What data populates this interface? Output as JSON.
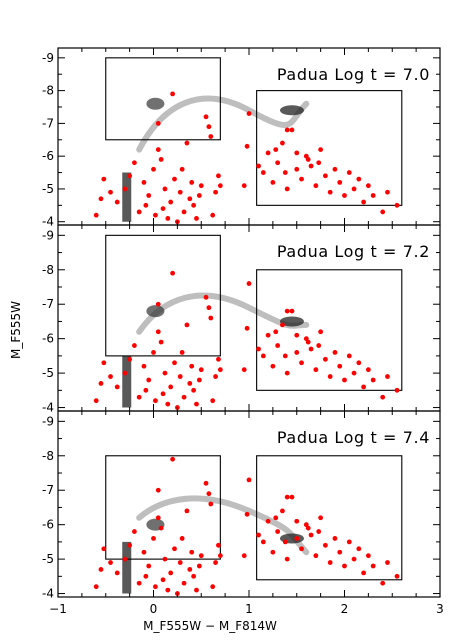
{
  "chart_data": {
    "type": "scatter",
    "xlabel": "M_F555W − M_F814W",
    "ylabel": "M_F555W",
    "x_range": [
      -1,
      3
    ],
    "x_ticks": [
      "−1",
      "0",
      "1",
      "2",
      "3"
    ],
    "panels": [
      {
        "title": "Padua Log t = 7.0",
        "y_range": [
          -3.9,
          -9.3
        ],
        "y_ticks": [
          "-9",
          "-8",
          "-7",
          "-6",
          "-5",
          "-4"
        ],
        "boxes": [
          {
            "x0": -0.5,
            "x1": 0.7,
            "y0": -6.5,
            "y1": -9.0
          },
          {
            "x0": 1.08,
            "x1": 2.6,
            "y0": -4.5,
            "y1": -8.0
          }
        ],
        "stars": [
          [
            -0.55,
            -4.7
          ],
          [
            -0.45,
            -4.9
          ],
          [
            -0.38,
            -4.6
          ],
          [
            -0.3,
            -5.0
          ],
          [
            -0.25,
            -5.4
          ],
          [
            -0.2,
            -5.8
          ],
          [
            -0.15,
            -4.3
          ],
          [
            -0.1,
            -5.2
          ],
          [
            -0.05,
            -4.8
          ],
          [
            0.0,
            -5.6
          ],
          [
            0.02,
            -4.2
          ],
          [
            0.05,
            -6.2
          ],
          [
            0.08,
            -5.9
          ],
          [
            0.1,
            -4.4
          ],
          [
            0.12,
            -5.0
          ],
          [
            0.15,
            -4.1
          ],
          [
            0.18,
            -4.6
          ],
          [
            0.22,
            -5.3
          ],
          [
            0.25,
            -4.0
          ],
          [
            0.28,
            -4.9
          ],
          [
            0.3,
            -5.6
          ],
          [
            0.32,
            -4.3
          ],
          [
            0.35,
            -6.4
          ],
          [
            0.38,
            -4.7
          ],
          [
            0.4,
            -5.2
          ],
          [
            0.42,
            -4.5
          ],
          [
            0.45,
            -4.1
          ],
          [
            0.48,
            -4.8
          ],
          [
            0.5,
            -5.1
          ],
          [
            0.55,
            -7.2
          ],
          [
            0.58,
            -6.9
          ],
          [
            0.6,
            -6.6
          ],
          [
            0.62,
            -4.2
          ],
          [
            0.65,
            -4.9
          ],
          [
            0.68,
            -5.4
          ],
          [
            0.2,
            -7.9
          ],
          [
            0.05,
            -7.0
          ],
          [
            0.7,
            -5.1
          ],
          [
            -0.08,
            -4.5
          ],
          [
            -0.6,
            -4.2
          ],
          [
            -0.52,
            -5.3
          ],
          [
            0.95,
            -5.1
          ],
          [
            0.98,
            -6.3
          ],
          [
            1.0,
            -7.3
          ],
          [
            1.1,
            -5.7
          ],
          [
            1.15,
            -5.5
          ],
          [
            1.2,
            -6.1
          ],
          [
            1.25,
            -5.2
          ],
          [
            1.3,
            -5.8
          ],
          [
            1.35,
            -6.4
          ],
          [
            1.4,
            -5.0
          ],
          [
            1.45,
            -6.8
          ],
          [
            1.5,
            -5.6
          ],
          [
            1.55,
            -5.3
          ],
          [
            1.6,
            -6.0
          ],
          [
            1.65,
            -5.7
          ],
          [
            1.7,
            -5.1
          ],
          [
            1.75,
            -6.2
          ],
          [
            1.8,
            -5.4
          ],
          [
            1.85,
            -4.9
          ],
          [
            1.9,
            -5.6
          ],
          [
            1.95,
            -5.2
          ],
          [
            2.0,
            -4.8
          ],
          [
            2.05,
            -5.5
          ],
          [
            2.1,
            -5.0
          ],
          [
            2.15,
            -5.3
          ],
          [
            2.2,
            -4.6
          ],
          [
            2.25,
            -5.1
          ],
          [
            2.3,
            -4.8
          ],
          [
            2.4,
            -4.3
          ],
          [
            2.45,
            -4.9
          ],
          [
            2.55,
            -4.5
          ],
          [
            1.4,
            -6.8
          ],
          [
            1.5,
            -6.1
          ],
          [
            1.62,
            -5.9
          ],
          [
            1.73,
            -5.8
          ],
          [
            1.28,
            -6.2
          ],
          [
            1.38,
            -5.5
          ]
        ]
      },
      {
        "title": "Padua Log t = 7.2",
        "y_range": [
          -3.9,
          -9.3
        ],
        "y_ticks": [
          "-9",
          "-8",
          "-7",
          "-6",
          "-5",
          "-4"
        ],
        "boxes": [
          {
            "x0": -0.5,
            "x1": 0.7,
            "y0": -5.5,
            "y1": -9.0
          },
          {
            "x0": 1.08,
            "x1": 2.6,
            "y0": -4.5,
            "y1": -8.0
          }
        ],
        "stars": [
          [
            -0.55,
            -4.7
          ],
          [
            -0.45,
            -4.9
          ],
          [
            -0.38,
            -4.6
          ],
          [
            -0.3,
            -5.0
          ],
          [
            -0.25,
            -5.4
          ],
          [
            -0.2,
            -5.8
          ],
          [
            -0.15,
            -4.3
          ],
          [
            -0.1,
            -5.2
          ],
          [
            -0.05,
            -4.8
          ],
          [
            0.0,
            -5.6
          ],
          [
            0.02,
            -4.2
          ],
          [
            0.05,
            -6.2
          ],
          [
            0.08,
            -5.9
          ],
          [
            0.1,
            -4.4
          ],
          [
            0.12,
            -5.0
          ],
          [
            0.15,
            -4.1
          ],
          [
            0.18,
            -4.6
          ],
          [
            0.22,
            -5.3
          ],
          [
            0.25,
            -4.0
          ],
          [
            0.28,
            -4.9
          ],
          [
            0.3,
            -5.6
          ],
          [
            0.32,
            -4.3
          ],
          [
            0.35,
            -6.4
          ],
          [
            0.38,
            -4.7
          ],
          [
            0.4,
            -5.2
          ],
          [
            0.42,
            -4.5
          ],
          [
            0.45,
            -4.1
          ],
          [
            0.48,
            -4.8
          ],
          [
            0.5,
            -5.1
          ],
          [
            0.55,
            -7.2
          ],
          [
            0.58,
            -6.9
          ],
          [
            0.6,
            -6.6
          ],
          [
            0.62,
            -4.2
          ],
          [
            0.65,
            -4.9
          ],
          [
            0.68,
            -5.4
          ],
          [
            0.2,
            -7.9
          ],
          [
            0.05,
            -7.0
          ],
          [
            0.7,
            -5.1
          ],
          [
            -0.08,
            -4.5
          ],
          [
            -0.6,
            -4.2
          ],
          [
            -0.52,
            -5.3
          ],
          [
            0.95,
            -5.1
          ],
          [
            0.98,
            -6.3
          ],
          [
            1.0,
            -7.6
          ],
          [
            1.1,
            -5.7
          ],
          [
            1.15,
            -5.5
          ],
          [
            1.2,
            -6.1
          ],
          [
            1.25,
            -5.2
          ],
          [
            1.3,
            -5.8
          ],
          [
            1.35,
            -6.4
          ],
          [
            1.4,
            -5.0
          ],
          [
            1.45,
            -6.8
          ],
          [
            1.5,
            -5.6
          ],
          [
            1.55,
            -5.3
          ],
          [
            1.6,
            -6.0
          ],
          [
            1.65,
            -5.7
          ],
          [
            1.7,
            -5.1
          ],
          [
            1.75,
            -6.2
          ],
          [
            1.8,
            -5.4
          ],
          [
            1.85,
            -4.9
          ],
          [
            1.9,
            -5.6
          ],
          [
            1.95,
            -5.2
          ],
          [
            2.0,
            -4.8
          ],
          [
            2.05,
            -5.5
          ],
          [
            2.1,
            -5.0
          ],
          [
            2.15,
            -5.3
          ],
          [
            2.2,
            -4.6
          ],
          [
            2.25,
            -5.1
          ],
          [
            2.3,
            -4.8
          ],
          [
            2.4,
            -4.3
          ],
          [
            2.45,
            -4.9
          ],
          [
            2.55,
            -4.5
          ],
          [
            1.4,
            -6.8
          ],
          [
            1.5,
            -6.1
          ],
          [
            1.62,
            -5.9
          ],
          [
            1.73,
            -5.8
          ],
          [
            1.28,
            -6.2
          ],
          [
            1.38,
            -5.5
          ]
        ]
      },
      {
        "title": "Padua Log t = 7.4",
        "y_range": [
          -3.9,
          -9.3
        ],
        "y_ticks": [
          "-9",
          "-8",
          "-7",
          "-6",
          "-5",
          "-4"
        ],
        "boxes": [
          {
            "x0": -0.5,
            "x1": 0.7,
            "y0": -5.0,
            "y1": -8.0
          },
          {
            "x0": 1.08,
            "x1": 2.6,
            "y0": -4.4,
            "y1": -8.0
          }
        ],
        "stars": [
          [
            -0.55,
            -4.7
          ],
          [
            -0.45,
            -4.9
          ],
          [
            -0.38,
            -4.6
          ],
          [
            -0.3,
            -5.0
          ],
          [
            -0.25,
            -5.4
          ],
          [
            -0.2,
            -5.8
          ],
          [
            -0.15,
            -4.3
          ],
          [
            -0.1,
            -5.2
          ],
          [
            -0.05,
            -4.8
          ],
          [
            0.0,
            -5.6
          ],
          [
            0.02,
            -4.2
          ],
          [
            0.05,
            -6.2
          ],
          [
            0.08,
            -5.9
          ],
          [
            0.1,
            -4.4
          ],
          [
            0.12,
            -5.0
          ],
          [
            0.15,
            -4.1
          ],
          [
            0.18,
            -4.6
          ],
          [
            0.22,
            -5.3
          ],
          [
            0.25,
            -4.0
          ],
          [
            0.28,
            -4.9
          ],
          [
            0.3,
            -5.6
          ],
          [
            0.32,
            -4.3
          ],
          [
            0.35,
            -6.4
          ],
          [
            0.38,
            -4.7
          ],
          [
            0.4,
            -5.2
          ],
          [
            0.42,
            -4.5
          ],
          [
            0.45,
            -4.1
          ],
          [
            0.48,
            -4.8
          ],
          [
            0.5,
            -5.1
          ],
          [
            0.55,
            -7.2
          ],
          [
            0.58,
            -6.9
          ],
          [
            0.6,
            -6.6
          ],
          [
            0.62,
            -4.2
          ],
          [
            0.65,
            -4.9
          ],
          [
            0.68,
            -5.4
          ],
          [
            0.2,
            -7.9
          ],
          [
            0.05,
            -7.0
          ],
          [
            0.7,
            -5.1
          ],
          [
            -0.08,
            -4.5
          ],
          [
            -0.6,
            -4.2
          ],
          [
            -0.52,
            -5.3
          ],
          [
            0.95,
            -5.1
          ],
          [
            0.98,
            -6.3
          ],
          [
            1.0,
            -7.3
          ],
          [
            1.1,
            -5.7
          ],
          [
            1.15,
            -5.5
          ],
          [
            1.2,
            -6.1
          ],
          [
            1.25,
            -5.2
          ],
          [
            1.3,
            -5.8
          ],
          [
            1.35,
            -6.4
          ],
          [
            1.4,
            -5.0
          ],
          [
            1.45,
            -6.8
          ],
          [
            1.5,
            -5.6
          ],
          [
            1.55,
            -5.3
          ],
          [
            1.6,
            -6.0
          ],
          [
            1.65,
            -5.7
          ],
          [
            1.7,
            -5.1
          ],
          [
            1.75,
            -6.2
          ],
          [
            1.8,
            -5.4
          ],
          [
            1.85,
            -4.9
          ],
          [
            1.9,
            -5.6
          ],
          [
            1.95,
            -5.2
          ],
          [
            2.0,
            -4.8
          ],
          [
            2.05,
            -5.5
          ],
          [
            2.1,
            -5.0
          ],
          [
            2.15,
            -5.3
          ],
          [
            2.2,
            -4.6
          ],
          [
            2.25,
            -5.1
          ],
          [
            2.3,
            -4.8
          ],
          [
            2.4,
            -4.3
          ],
          [
            2.45,
            -4.9
          ],
          [
            2.55,
            -4.5
          ],
          [
            1.4,
            -6.8
          ],
          [
            1.5,
            -6.1
          ],
          [
            1.62,
            -5.9
          ],
          [
            1.73,
            -5.8
          ],
          [
            1.28,
            -6.2
          ],
          [
            1.38,
            -5.5
          ]
        ]
      }
    ]
  },
  "colors": {
    "stars": "#ff0000",
    "isochrone": "#000000",
    "axes": "#000000"
  }
}
